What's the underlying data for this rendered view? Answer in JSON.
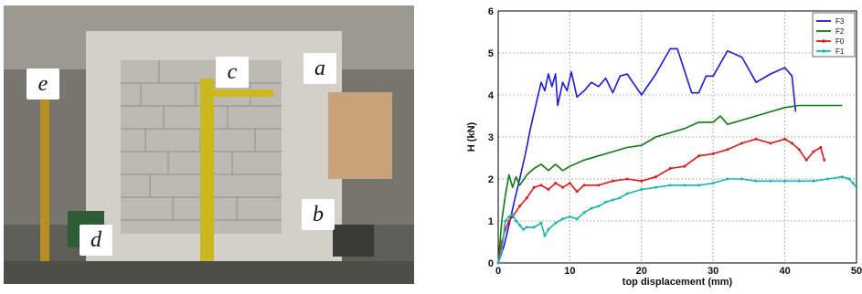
{
  "photo": {
    "labels": {
      "a": "a",
      "b": "b",
      "c": "c",
      "d": "d",
      "e": "e"
    }
  },
  "chart_data": {
    "type": "line",
    "title": "",
    "xlabel": "top displacement (mm)",
    "ylabel": "H (kN)",
    "xlim": [
      0,
      50
    ],
    "ylim": [
      0,
      6
    ],
    "xticks": [
      0,
      10,
      20,
      30,
      40,
      50
    ],
    "yticks": [
      0,
      1,
      2,
      3,
      4,
      5,
      6
    ],
    "grid": true,
    "legend_position": "top-right",
    "series": [
      {
        "name": "F3",
        "color": "#1a1adc",
        "marker": "none",
        "points": [
          [
            0,
            0
          ],
          [
            0.8,
            0.4
          ],
          [
            1.5,
            0.9
          ],
          [
            2.3,
            1.5
          ],
          [
            3,
            2
          ],
          [
            3.8,
            2.6
          ],
          [
            4.5,
            3.2
          ],
          [
            5.3,
            3.8
          ],
          [
            6,
            4.3
          ],
          [
            6.5,
            4.1
          ],
          [
            7,
            4.5
          ],
          [
            7.5,
            4.2
          ],
          [
            8,
            4.5
          ],
          [
            8.3,
            3.75
          ],
          [
            9,
            4.3
          ],
          [
            9.6,
            4.1
          ],
          [
            10.2,
            4.55
          ],
          [
            11,
            3.95
          ],
          [
            12,
            4.1
          ],
          [
            13,
            4.3
          ],
          [
            14,
            4.2
          ],
          [
            15,
            4.4
          ],
          [
            16,
            4.05
          ],
          [
            17,
            4.45
          ],
          [
            18,
            4.5
          ],
          [
            20,
            4.0
          ],
          [
            22,
            4.5
          ],
          [
            24,
            5.1
          ],
          [
            25,
            5.1
          ],
          [
            27,
            4.05
          ],
          [
            28,
            4.05
          ],
          [
            29,
            4.45
          ],
          [
            30,
            4.45
          ],
          [
            32,
            5.05
          ],
          [
            34,
            4.9
          ],
          [
            36,
            4.3
          ],
          [
            38,
            4.5
          ],
          [
            40,
            4.65
          ],
          [
            41,
            4.45
          ],
          [
            41.5,
            3.6
          ]
        ]
      },
      {
        "name": "F2",
        "color": "#0f7a0f",
        "marker": "none",
        "points": [
          [
            0,
            0
          ],
          [
            0.5,
            1.0
          ],
          [
            1,
            1.6
          ],
          [
            1.5,
            2.1
          ],
          [
            2,
            1.8
          ],
          [
            2.5,
            2.05
          ],
          [
            3,
            1.85
          ],
          [
            4,
            2.1
          ],
          [
            5,
            2.25
          ],
          [
            6,
            2.35
          ],
          [
            7,
            2.2
          ],
          [
            8,
            2.35
          ],
          [
            9,
            2.2
          ],
          [
            10,
            2.3
          ],
          [
            12,
            2.45
          ],
          [
            15,
            2.6
          ],
          [
            18,
            2.75
          ],
          [
            20,
            2.8
          ],
          [
            22,
            3.0
          ],
          [
            24,
            3.1
          ],
          [
            26,
            3.2
          ],
          [
            28,
            3.35
          ],
          [
            30,
            3.35
          ],
          [
            31,
            3.5
          ],
          [
            32,
            3.3
          ],
          [
            34,
            3.4
          ],
          [
            36,
            3.5
          ],
          [
            38,
            3.6
          ],
          [
            40,
            3.7
          ],
          [
            42,
            3.75
          ],
          [
            44,
            3.75
          ],
          [
            46,
            3.75
          ],
          [
            48,
            3.75
          ]
        ]
      },
      {
        "name": "F0",
        "color": "#dc1a1a",
        "marker": "dot",
        "points": [
          [
            0,
            0
          ],
          [
            0.5,
            0.5
          ],
          [
            1,
            0.8
          ],
          [
            1.5,
            1.0
          ],
          [
            2,
            1.1
          ],
          [
            3,
            1.35
          ],
          [
            4,
            1.55
          ],
          [
            5,
            1.8
          ],
          [
            6,
            1.85
          ],
          [
            7,
            1.75
          ],
          [
            8,
            1.9
          ],
          [
            9,
            1.8
          ],
          [
            10,
            1.9
          ],
          [
            11,
            1.7
          ],
          [
            12,
            1.85
          ],
          [
            14,
            1.85
          ],
          [
            16,
            1.95
          ],
          [
            18,
            2.0
          ],
          [
            20,
            1.95
          ],
          [
            22,
            2.05
          ],
          [
            24,
            2.25
          ],
          [
            26,
            2.3
          ],
          [
            28,
            2.55
          ],
          [
            30,
            2.6
          ],
          [
            32,
            2.7
          ],
          [
            34,
            2.85
          ],
          [
            36,
            2.95
          ],
          [
            38,
            2.85
          ],
          [
            40,
            2.95
          ],
          [
            41,
            2.85
          ],
          [
            42,
            2.7
          ],
          [
            43,
            2.45
          ],
          [
            44,
            2.65
          ],
          [
            45,
            2.75
          ],
          [
            45.5,
            2.45
          ]
        ]
      },
      {
        "name": "F1",
        "color": "#1ab4b4",
        "marker": "dot",
        "points": [
          [
            0,
            0
          ],
          [
            0.5,
            0.3
          ],
          [
            1,
            1.0
          ],
          [
            1.5,
            1.1
          ],
          [
            2,
            1.15
          ],
          [
            2.5,
            1.0
          ],
          [
            3,
            0.9
          ],
          [
            3.5,
            0.8
          ],
          [
            4,
            0.85
          ],
          [
            5,
            0.85
          ],
          [
            6,
            0.95
          ],
          [
            6.5,
            0.65
          ],
          [
            7,
            0.8
          ],
          [
            8,
            0.95
          ],
          [
            9,
            1.05
          ],
          [
            10,
            1.1
          ],
          [
            11,
            1.05
          ],
          [
            12,
            1.2
          ],
          [
            13,
            1.3
          ],
          [
            14,
            1.35
          ],
          [
            15,
            1.45
          ],
          [
            16,
            1.5
          ],
          [
            17,
            1.55
          ],
          [
            18,
            1.65
          ],
          [
            20,
            1.75
          ],
          [
            22,
            1.8
          ],
          [
            24,
            1.85
          ],
          [
            26,
            1.85
          ],
          [
            28,
            1.85
          ],
          [
            30,
            1.9
          ],
          [
            32,
            2.0
          ],
          [
            34,
            2.0
          ],
          [
            36,
            1.95
          ],
          [
            38,
            1.95
          ],
          [
            40,
            1.95
          ],
          [
            42,
            1.95
          ],
          [
            44,
            1.95
          ],
          [
            46,
            2.0
          ],
          [
            48,
            2.05
          ],
          [
            49,
            2.0
          ],
          [
            49.5,
            1.9
          ],
          [
            50,
            1.8
          ]
        ]
      }
    ]
  }
}
